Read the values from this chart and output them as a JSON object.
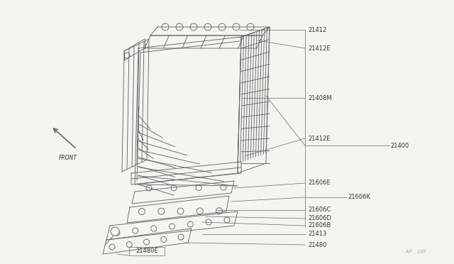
{
  "bg_color": "#f5f5f0",
  "line_color": "#666666",
  "label_color": "#333333",
  "watermark": "AP   10P",
  "lw": 0.65,
  "label_fs": 6.0,
  "parts": [
    "21412",
    "21412E",
    "21408M",
    "21412E",
    "21400",
    "21606E",
    "21606K",
    "21606C",
    "21606D",
    "21606B",
    "21413",
    "21480",
    "21480E"
  ]
}
